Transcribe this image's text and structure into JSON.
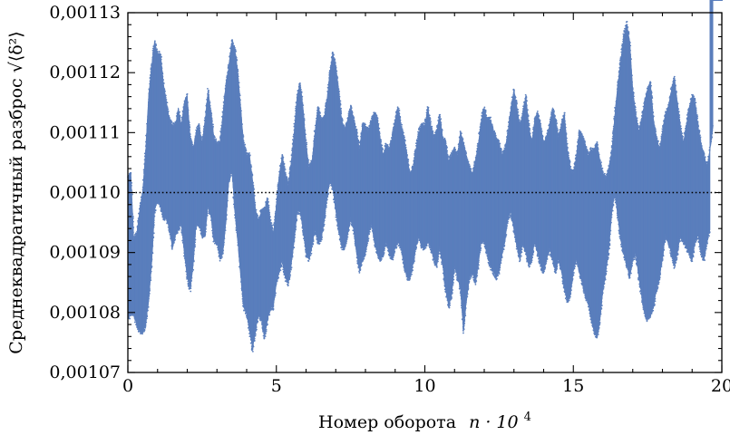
{
  "chart_data": {
    "type": "scatter",
    "xlabel": "Номер оборота",
    "xlabel_math": "n · 10",
    "xlabel_exp": "4",
    "ylabel": "Среднеквадратичный разброс √⟨δ²⟩",
    "xlim": [
      0,
      20
    ],
    "ylim": [
      0.00107,
      0.00113
    ],
    "x_ticks": [
      0,
      5,
      10,
      15,
      20
    ],
    "x_tick_labels": [
      "0",
      "5",
      "10",
      "15",
      "20"
    ],
    "y_ticks": [
      0.00107,
      0.00108,
      0.00109,
      0.0011,
      0.00111,
      0.00112,
      0.00113
    ],
    "y_tick_labels": [
      "0,00107",
      "0,00108",
      "0,00109",
      "0,00110",
      "0,00111",
      "0,00112",
      "0,00113"
    ],
    "reference_line": {
      "y": 0.0011,
      "style": "dotted",
      "color": "#000000"
    },
    "marker_color": "#5b7fbd",
    "grid": false,
    "series": [
      {
        "envelope_x": [
          0,
          0.1,
          0.2,
          0.3,
          0.4,
          0.5,
          0.6,
          0.7,
          0.8,
          0.9,
          1.0,
          1.1,
          1.2,
          1.3,
          1.4,
          1.5,
          1.6,
          1.7,
          1.8,
          1.9,
          2.0,
          2.1,
          2.2,
          2.3,
          2.4,
          2.5,
          2.6,
          2.7,
          2.8,
          2.9,
          3.0,
          3.1,
          3.2,
          3.3,
          3.4,
          3.5,
          3.6,
          3.7,
          3.8,
          3.9,
          4.0,
          4.1,
          4.2,
          4.3,
          4.4,
          4.5,
          4.6,
          4.7,
          4.8,
          4.9,
          5.0,
          5.1,
          5.2,
          5.3,
          5.4,
          5.5,
          5.6,
          5.7,
          5.8,
          5.9,
          6.0,
          6.1,
          6.2,
          6.3,
          6.4,
          6.5,
          6.6,
          6.7,
          6.8,
          6.9,
          7.0,
          7.1,
          7.2,
          7.3,
          7.4,
          7.5,
          7.6,
          7.7,
          7.8,
          7.9,
          8.0,
          8.1,
          8.2,
          8.3,
          8.4,
          8.5,
          8.6,
          8.7,
          8.8,
          8.9,
          9.0,
          9.1,
          9.2,
          9.3,
          9.4,
          9.5,
          9.6,
          9.7,
          9.8,
          9.9,
          10.0,
          10.1,
          10.2,
          10.3,
          10.4,
          10.5,
          10.6,
          10.7,
          10.8,
          10.9,
          11.0,
          11.1,
          11.2,
          11.3,
          11.4,
          11.5,
          11.6,
          11.7,
          11.8,
          11.9,
          12.0,
          12.1,
          12.2,
          12.3,
          12.4,
          12.5,
          12.6,
          12.7,
          12.8,
          12.9,
          13.0,
          13.1,
          13.2,
          13.3,
          13.4,
          13.5,
          13.6,
          13.7,
          13.8,
          13.9,
          14.0,
          14.1,
          14.2,
          14.3,
          14.4,
          14.5,
          14.6,
          14.7,
          14.8,
          14.9,
          15.0,
          15.1,
          15.2,
          15.3,
          15.4,
          15.5,
          15.6,
          15.7,
          15.8,
          15.9,
          16.0,
          16.1,
          16.2,
          16.3,
          16.4,
          16.5,
          16.6,
          16.7,
          16.8,
          16.9,
          17.0,
          17.1,
          17.2,
          17.3,
          17.4,
          17.5,
          17.6,
          17.7,
          17.8,
          17.9,
          18.0,
          18.1,
          18.2,
          18.3,
          18.4,
          18.5,
          18.6,
          18.7,
          18.8,
          18.9,
          19.0,
          19.1,
          19.2,
          19.3,
          19.4,
          19.5,
          19.6,
          19.7,
          19.8,
          19.9,
          20.0
        ],
        "envelope_max": [
          0.001102,
          0.001103,
          0.001092,
          0.001093,
          0.001097,
          0.0011,
          0.001107,
          0.001116,
          0.001121,
          0.001125,
          0.001123,
          0.001123,
          0.001118,
          0.001115,
          0.001112,
          0.001111,
          0.001111,
          0.001114,
          0.001111,
          0.001115,
          0.001116,
          0.001109,
          0.001107,
          0.00111,
          0.001111,
          0.001108,
          0.001112,
          0.001117,
          0.001113,
          0.001109,
          0.001108,
          0.001108,
          0.001113,
          0.001118,
          0.001121,
          0.001125,
          0.001124,
          0.00112,
          0.001114,
          0.001108,
          0.001106,
          0.001106,
          0.001102,
          0.001097,
          0.001095,
          0.001097,
          0.001097,
          0.001099,
          0.001095,
          0.001093,
          0.001098,
          0.001103,
          0.001106,
          0.001103,
          0.001101,
          0.001105,
          0.00111,
          0.001116,
          0.001118,
          0.001114,
          0.001108,
          0.001104,
          0.001105,
          0.00111,
          0.001114,
          0.001112,
          0.001112,
          0.001115,
          0.00112,
          0.001123,
          0.001121,
          0.001117,
          0.001112,
          0.00111,
          0.001112,
          0.001114,
          0.001112,
          0.00111,
          0.001107,
          0.001111,
          0.001111,
          0.00111,
          0.001112,
          0.001113,
          0.001112,
          0.001109,
          0.001106,
          0.001108,
          0.001107,
          0.001109,
          0.001112,
          0.001114,
          0.001111,
          0.001109,
          0.001106,
          0.001103,
          0.001104,
          0.001107,
          0.00111,
          0.001111,
          0.001111,
          0.001114,
          0.001111,
          0.001109,
          0.00111,
          0.001113,
          0.001109,
          0.001108,
          0.001105,
          0.001106,
          0.001107,
          0.001106,
          0.00111,
          0.001108,
          0.001106,
          0.001104,
          0.001103,
          0.001105,
          0.001108,
          0.001112,
          0.001114,
          0.001112,
          0.001112,
          0.00111,
          0.001109,
          0.001108,
          0.001106,
          0.001107,
          0.00111,
          0.001114,
          0.001117,
          0.001114,
          0.001111,
          0.001113,
          0.001116,
          0.001111,
          0.001108,
          0.001112,
          0.001113,
          0.001111,
          0.001108,
          0.001109,
          0.001111,
          0.001114,
          0.001112,
          0.001109,
          0.001111,
          0.001113,
          0.001107,
          0.001104,
          0.001103,
          0.001106,
          0.00111,
          0.001109,
          0.001108,
          0.001106,
          0.001107,
          0.001107,
          0.001108,
          0.001105,
          0.001103,
          0.001102,
          0.001104,
          0.001107,
          0.001113,
          0.001118,
          0.001122,
          0.001126,
          0.001128,
          0.001125,
          0.001117,
          0.001113,
          0.00111,
          0.001112,
          0.001115,
          0.001117,
          0.001118,
          0.001112,
          0.001109,
          0.001107,
          0.00111,
          0.001113,
          0.001114,
          0.001117,
          0.001119,
          0.001115,
          0.001111,
          0.001108,
          0.001111,
          0.001114,
          0.001116,
          0.001115,
          0.001111,
          0.001108,
          0.001106,
          0.001104,
          0.001107,
          0.001111
        ],
        "envelope_min": [
          0.001079,
          0.00108,
          0.00108,
          0.001078,
          0.001077,
          0.001077,
          0.001078,
          0.001082,
          0.001088,
          0.001097,
          0.001099,
          0.001098,
          0.001096,
          0.001096,
          0.001094,
          0.001091,
          0.001093,
          0.001094,
          0.001095,
          0.00109,
          0.001086,
          0.001084,
          0.001088,
          0.001095,
          0.001095,
          0.001093,
          0.001093,
          0.001098,
          0.001096,
          0.001092,
          0.001092,
          0.001089,
          0.00109,
          0.001095,
          0.001102,
          0.001104,
          0.001097,
          0.001092,
          0.001086,
          0.001081,
          0.00108,
          0.001077,
          0.001074,
          0.001077,
          0.00108,
          0.001079,
          0.001076,
          0.001079,
          0.001081,
          0.001081,
          0.001085,
          0.001087,
          0.001089,
          0.001086,
          0.001085,
          0.001088,
          0.001092,
          0.001097,
          0.001097,
          0.001094,
          0.00109,
          0.001089,
          0.001091,
          0.001094,
          0.001092,
          0.001092,
          0.001095,
          0.001099,
          0.001102,
          0.001101,
          0.001097,
          0.001094,
          0.001091,
          0.001091,
          0.001093,
          0.001096,
          0.001094,
          0.00109,
          0.001087,
          0.001089,
          0.00109,
          0.001093,
          0.001095,
          0.001092,
          0.00109,
          0.001089,
          0.00109,
          0.001092,
          0.00109,
          0.001089,
          0.001091,
          0.001092,
          0.001091,
          0.001088,
          0.001086,
          0.001086,
          0.001088,
          0.001091,
          0.001093,
          0.001091,
          0.001091,
          0.001092,
          0.001091,
          0.001089,
          0.001088,
          0.001091,
          0.001088,
          0.001084,
          0.001081,
          0.001083,
          0.001088,
          0.001086,
          0.001084,
          0.001077,
          0.001082,
          0.001086,
          0.001087,
          0.001085,
          0.001088,
          0.001092,
          0.001092,
          0.00109,
          0.001088,
          0.001087,
          0.001086,
          0.001087,
          0.00109,
          0.001092,
          0.001096,
          0.001097,
          0.001094,
          0.001091,
          0.001089,
          0.001092,
          0.00109,
          0.001088,
          0.001089,
          0.001092,
          0.00109,
          0.001088,
          0.001087,
          0.001089,
          0.001091,
          0.001089,
          0.001087,
          0.001089,
          0.001087,
          0.001084,
          0.001082,
          0.001083,
          0.001087,
          0.001089,
          0.001087,
          0.001085,
          0.001083,
          0.001082,
          0.001079,
          0.001077,
          0.001076,
          0.001079,
          0.001084,
          0.001087,
          0.001091,
          0.001097,
          0.0011,
          0.001096,
          0.001092,
          0.00109,
          0.001088,
          0.001086,
          0.001089,
          0.00109,
          0.001086,
          0.001083,
          0.00108,
          0.001079,
          0.00108,
          0.001081,
          0.001084,
          0.001086,
          0.001089,
          0.001093,
          0.001092,
          0.00109,
          0.001088,
          0.00109,
          0.001093,
          0.001092,
          0.001091,
          0.00109,
          0.001089,
          0.001092,
          0.001093,
          0.00109,
          0.001089,
          0.001092,
          0.001094
        ]
      }
    ]
  }
}
